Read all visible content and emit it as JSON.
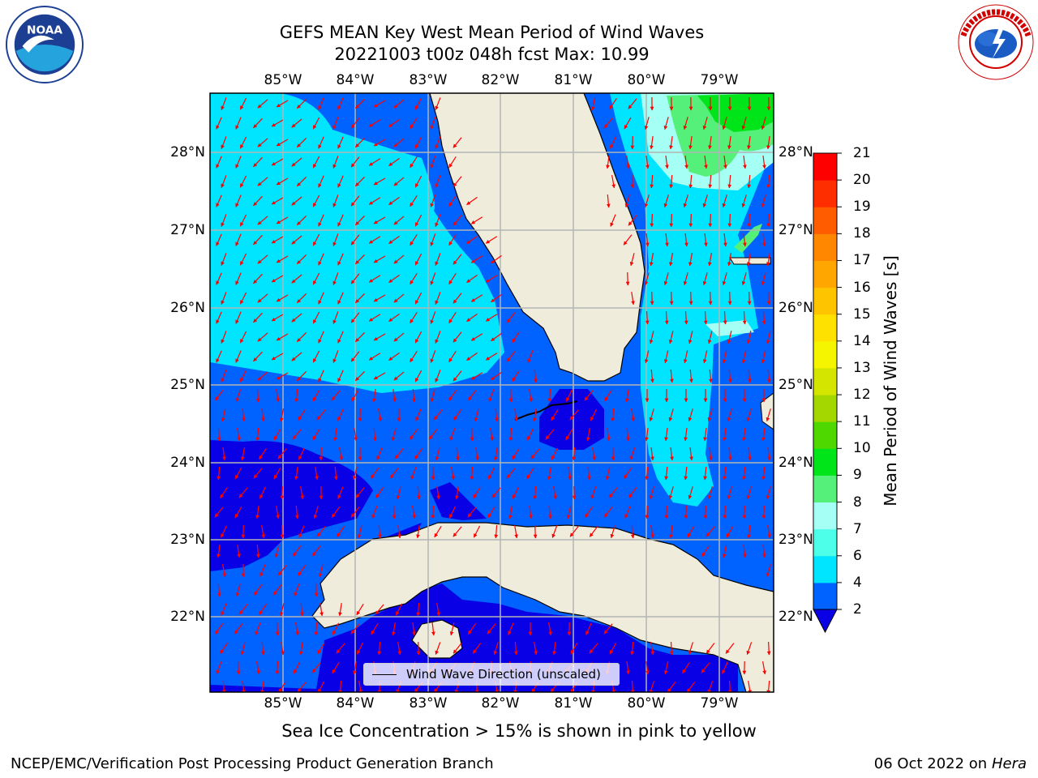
{
  "title": {
    "line1": "GEFS MEAN Key West Mean Period of Wind Waves",
    "line2": "20221003 t00z 048h fcst   Max: 10.99"
  },
  "map": {
    "lon_labels": [
      "85°W",
      "84°W",
      "83°W",
      "82°W",
      "81°W",
      "80°W",
      "79°W"
    ],
    "lat_labels": [
      "28°N",
      "27°N",
      "26°N",
      "25°N",
      "24°N",
      "23°N",
      "22°N"
    ],
    "colors": {
      "land": "#efecdc",
      "grid": "#b4b4b4",
      "coast": "#000000",
      "arrow": "#ff0000"
    },
    "legend": "Wind Wave Direction (unscaled)"
  },
  "colorbar": {
    "label": "Mean Period of Wind Waves [s]",
    "ticks": [
      "2",
      "4",
      "6",
      "7",
      "8",
      "9",
      "10",
      "11",
      "12",
      "13",
      "14",
      "15",
      "16",
      "17",
      "18",
      "19",
      "20",
      "21"
    ],
    "colors": [
      "#0062ff",
      "#00e5ff",
      "#4dffe8",
      "#a6fff5",
      "#55f079",
      "#00e41a",
      "#4fd700",
      "#a4d700",
      "#d4e600",
      "#f5f500",
      "#ffe100",
      "#ffc400",
      "#ffa600",
      "#ff8700",
      "#ff5c00",
      "#ff2e00",
      "#ff0000"
    ],
    "under_color": "#0a00e6"
  },
  "sea_ice_note": "Sea Ice Concentration > 15% is shown in pink to yellow",
  "footer": {
    "left": "NCEP/EMC/Verification Post Processing Product Generation Branch",
    "date": "06 Oct 2022 on ",
    "machine": "Hera"
  }
}
